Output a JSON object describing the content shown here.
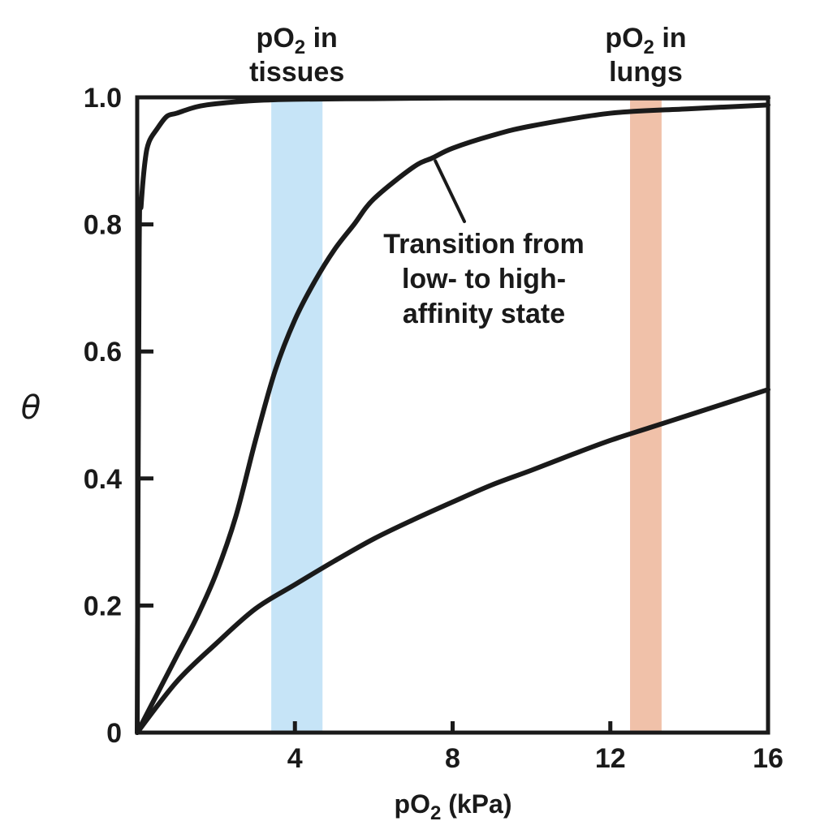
{
  "chart_data": {
    "type": "line",
    "title": "",
    "xlabel": {
      "prefix": "pO",
      "sub": "2",
      "suffix": " (kPa)"
    },
    "ylabel": "θ",
    "xlim": [
      0,
      16
    ],
    "ylim": [
      0,
      1.0
    ],
    "x_ticks": [
      4,
      8,
      12,
      16
    ],
    "x_tick_labels": [
      "4",
      "8",
      "12",
      "16"
    ],
    "y_ticks": [
      0,
      0.2,
      0.4,
      0.6,
      0.8,
      1.0
    ],
    "y_tick_labels": [
      "0",
      "0.2",
      "0.4",
      "0.6",
      "0.8",
      "1.0"
    ],
    "grid": false,
    "bands": [
      {
        "name": "tissues",
        "x_range": [
          3.4,
          4.7
        ],
        "color": "#c6e4f7",
        "label_line1": {
          "prefix": "pO",
          "sub": "2",
          "suffix": " in"
        },
        "label_line2": "tissues"
      },
      {
        "name": "lungs",
        "x_range": [
          12.5,
          13.3
        ],
        "color": "#f0c1a9",
        "label_line1": {
          "prefix": "pO",
          "sub": "2",
          "suffix": " in"
        },
        "label_line2": "lungs"
      }
    ],
    "series": [
      {
        "x": [
          0,
          0.05,
          0.1,
          0.2,
          0.3,
          0.5,
          0.75,
          1.0,
          1.5,
          2.0,
          3.0,
          4.0,
          6.0,
          8.0,
          10.0,
          12.0,
          14.0,
          16.0
        ],
        "values": [
          0,
          0.76,
          0.83,
          0.9,
          0.93,
          0.95,
          0.97,
          0.975,
          0.985,
          0.99,
          0.995,
          0.997,
          0.998,
          0.999,
          0.999,
          0.999,
          0.999,
          0.999
        ],
        "color": "#1a1a1a"
      },
      {
        "x": [
          0,
          0.5,
          1.0,
          1.5,
          2.0,
          2.5,
          3.0,
          3.5,
          4.0,
          4.5,
          5.0,
          5.5,
          6.0,
          7.0,
          7.5,
          8.0,
          9.0,
          10.0,
          12.0,
          14.0,
          16.0
        ],
        "values": [
          0,
          0.06,
          0.12,
          0.18,
          0.25,
          0.34,
          0.46,
          0.57,
          0.65,
          0.71,
          0.76,
          0.8,
          0.84,
          0.89,
          0.905,
          0.92,
          0.94,
          0.955,
          0.975,
          0.982,
          0.988
        ],
        "color": "#1a1a1a"
      },
      {
        "x": [
          0,
          1,
          2,
          3,
          4,
          5,
          6,
          7,
          8,
          9,
          10,
          11,
          12,
          13,
          14,
          15,
          16
        ],
        "values": [
          0,
          0.08,
          0.14,
          0.195,
          0.233,
          0.27,
          0.305,
          0.335,
          0.363,
          0.39,
          0.413,
          0.437,
          0.46,
          0.48,
          0.5,
          0.52,
          0.54
        ],
        "color": "#1a1a1a"
      }
    ],
    "annotations": [
      {
        "lines": [
          "Transition from",
          "low- to high-",
          "affinity state"
        ],
        "points_to": {
          "x": 7.5,
          "y": 0.905
        }
      }
    ]
  }
}
